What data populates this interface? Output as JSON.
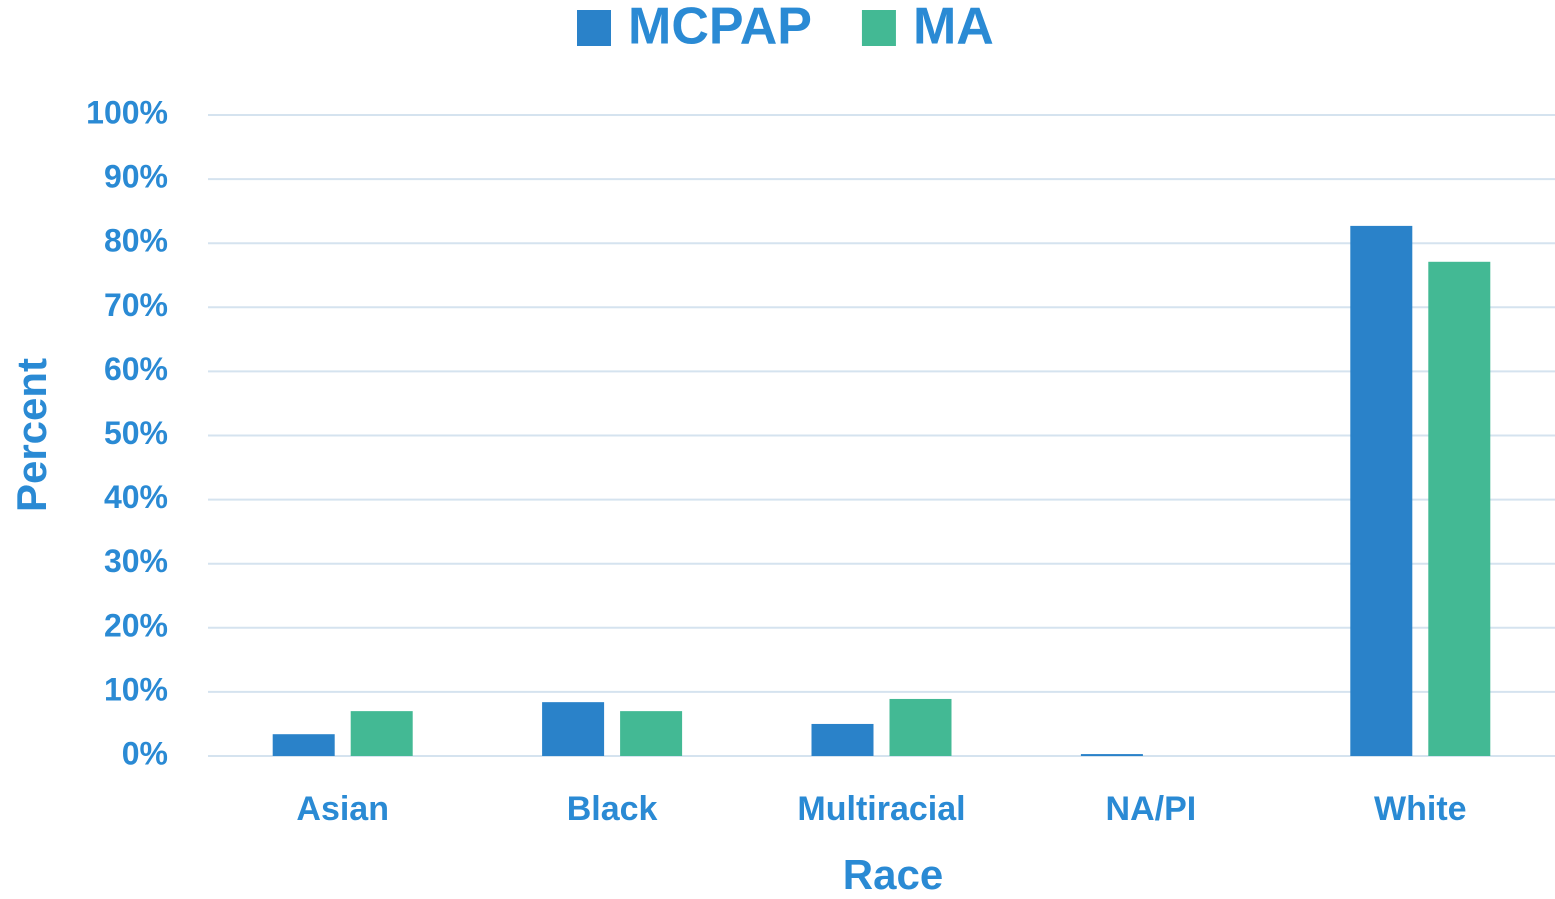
{
  "chart_data": {
    "type": "bar",
    "xlabel": "Race",
    "ylabel": "Percent",
    "categories": [
      "Asian",
      "Black",
      "Multiracial",
      "NA/PI",
      "White"
    ],
    "series": [
      {
        "name": "MCPAP",
        "color": "#2a82c9",
        "values": [
          3.4,
          8.4,
          5.0,
          0.3,
          82.7
        ]
      },
      {
        "name": "MA",
        "color": "#43b994",
        "values": [
          7.0,
          7.0,
          8.9,
          0,
          77.1
        ]
      }
    ],
    "ylim": [
      0,
      100
    ],
    "yticks": [
      {
        "value": 0,
        "label": "0%"
      },
      {
        "value": 10,
        "label": "10%"
      },
      {
        "value": 20,
        "label": "20%"
      },
      {
        "value": 30,
        "label": "30%"
      },
      {
        "value": 40,
        "label": "40%"
      },
      {
        "value": 50,
        "label": "50%"
      },
      {
        "value": 60,
        "label": "60%"
      },
      {
        "value": 70,
        "label": "70%"
      },
      {
        "value": 80,
        "label": "80%"
      },
      {
        "value": 90,
        "label": "90%"
      },
      {
        "value": 100,
        "label": "100%"
      }
    ],
    "grid": true,
    "legend": "top"
  }
}
